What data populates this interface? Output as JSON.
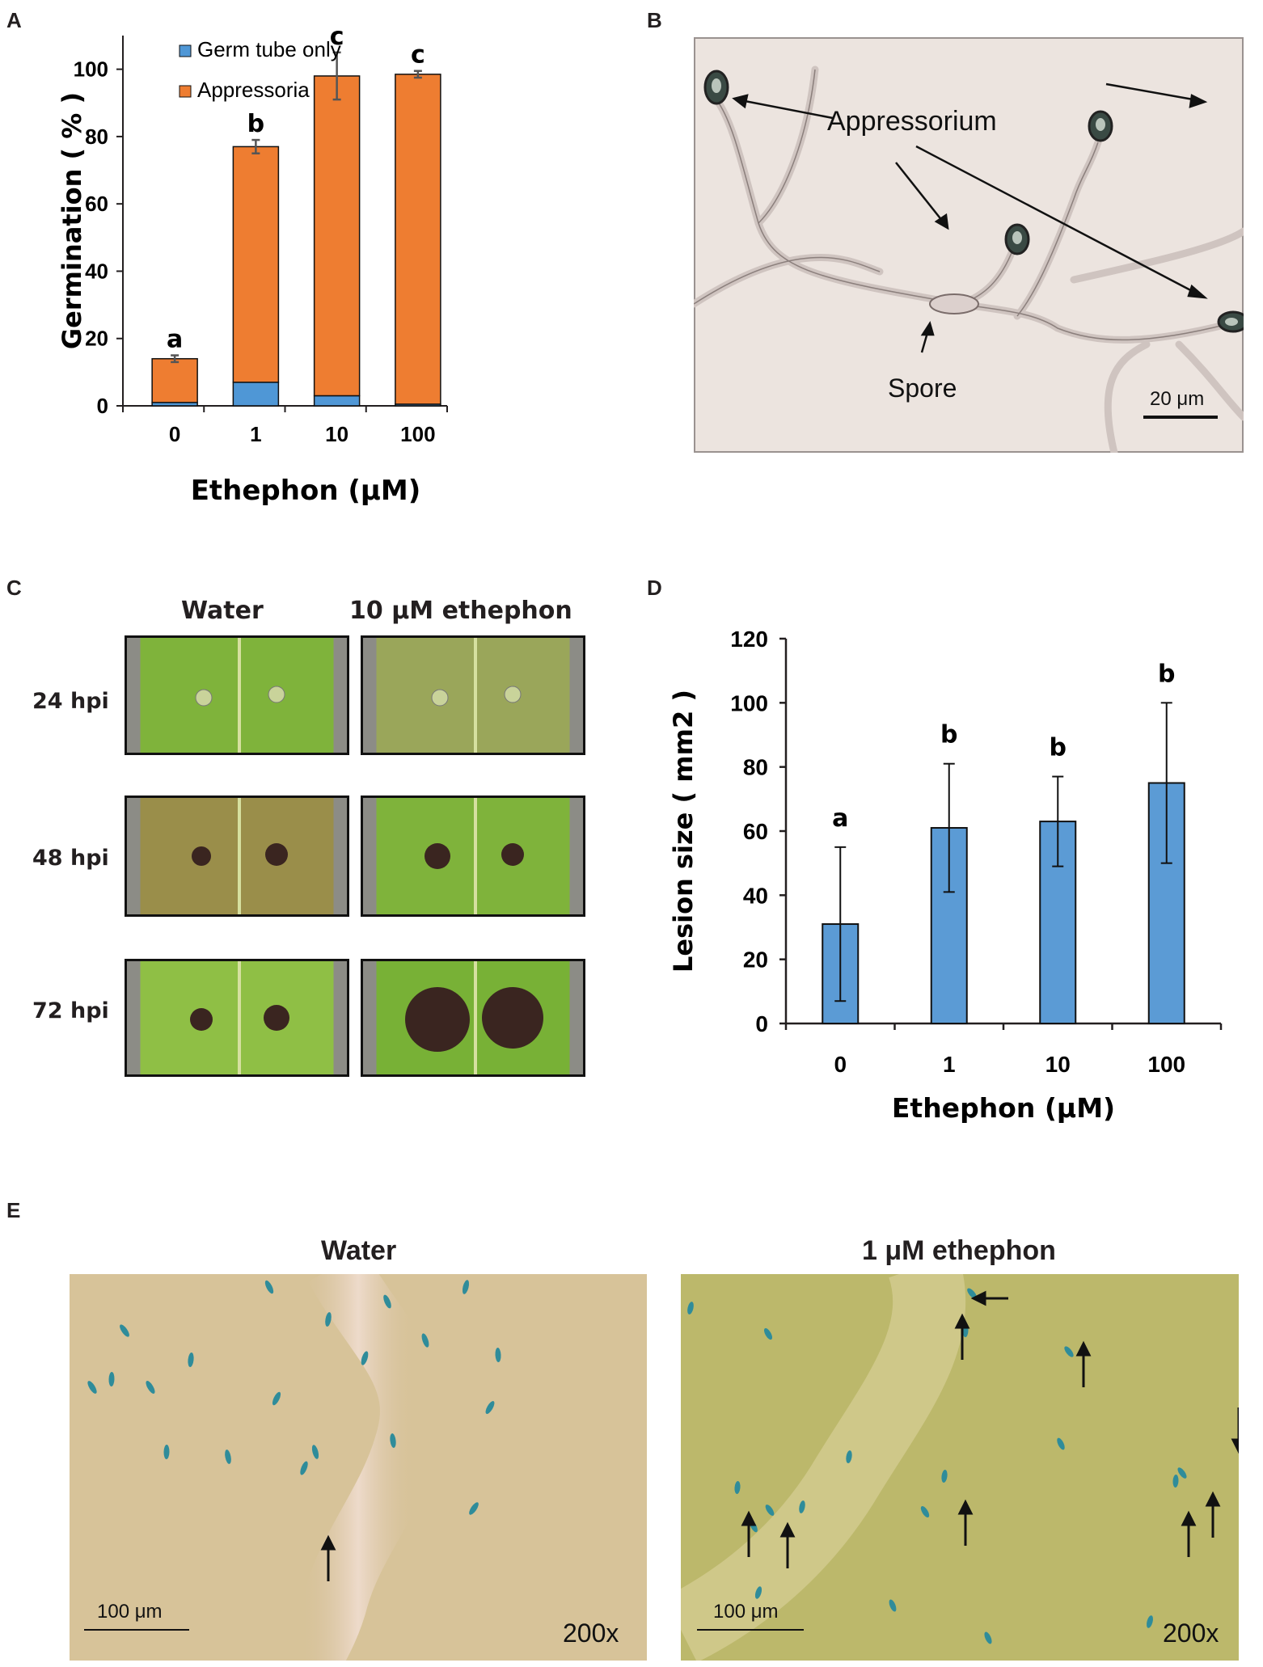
{
  "panel_letters": {
    "a": "A",
    "b": "B",
    "c": "C",
    "d": "D",
    "e": "E"
  },
  "colors": {
    "germ_tube": "#4f97d6",
    "appressoria": "#ee7d31",
    "lesion_bar": "#5b9bd5",
    "axis": "#231f20"
  },
  "chart_data": [
    {
      "panel": "A",
      "type": "bar",
      "stacked": true,
      "categories": [
        "0",
        "1",
        "10",
        "100"
      ],
      "series": [
        {
          "name": "Germ tube only",
          "values": [
            1,
            7,
            3,
            0.5
          ]
        },
        {
          "name": "Appressoria",
          "values": [
            13,
            70,
            95,
            98
          ]
        }
      ],
      "error_bars": [
        1,
        2,
        7,
        1
      ],
      "letters": [
        "a",
        "b",
        "c",
        "c"
      ],
      "ylabel": "Germination ( % )",
      "xlabel": "Ethephon (μM)",
      "ylim": [
        0,
        100
      ],
      "yticks": [
        "0",
        "20",
        "40",
        "60",
        "80",
        "100"
      ],
      "legend_position": "top-left"
    },
    {
      "panel": "D",
      "type": "bar",
      "categories": [
        "0",
        "1",
        "10",
        "100"
      ],
      "values": [
        31,
        61,
        63,
        75
      ],
      "error_bars": [
        24,
        20,
        14,
        25
      ],
      "letters": [
        "a",
        "b",
        "b",
        "b"
      ],
      "ylabel": "Lesion size ( mm2 )",
      "xlabel": "Ethephon (μM)",
      "ylim": [
        0,
        120
      ],
      "yticks": [
        "0",
        "20",
        "40",
        "60",
        "80",
        "100",
        "120"
      ]
    }
  ],
  "panel_b": {
    "appressorium_label": "Appressorium",
    "spore_label": "Spore",
    "scale_label": "20 μm"
  },
  "panel_c": {
    "columns": [
      "Water",
      "10 μM ethephon"
    ],
    "rows": [
      "24 hpi",
      "48 hpi",
      "72 hpi"
    ]
  },
  "panel_e": {
    "left_title": "Water",
    "right_title": "1 μM ethephon",
    "scale_label": "100 μm",
    "magnification": "200x"
  }
}
